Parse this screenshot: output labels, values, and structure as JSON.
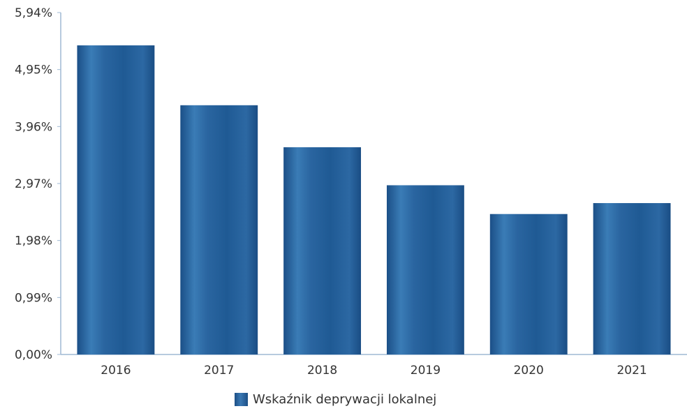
{
  "chart_data": {
    "type": "bar",
    "categories": [
      "2016",
      "2017",
      "2018",
      "2019",
      "2020",
      "2021"
    ],
    "series": [
      {
        "name": "Wskaźnik deprywacji lokalnej",
        "values": [
          5.37,
          4.33,
          3.6,
          2.94,
          2.44,
          2.63
        ]
      }
    ],
    "ylim": [
      0,
      5.94
    ],
    "yticks": [
      "0,00%",
      "0,99%",
      "1,98%",
      "2,97%",
      "3,96%",
      "4,95%",
      "5,94%"
    ],
    "ytick_values": [
      0,
      0.99,
      1.98,
      2.97,
      3.96,
      4.95,
      5.94
    ],
    "grid": false,
    "legend_position": "bottom-center",
    "colors": {
      "bar": "#1c5a92",
      "bar_light": "#3f80bb",
      "axis": "#9fb8d4",
      "text": "#333333"
    }
  }
}
